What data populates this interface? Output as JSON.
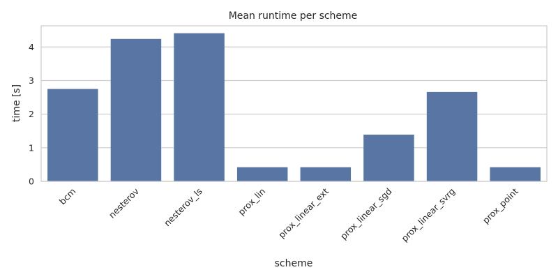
{
  "chart_data": {
    "type": "bar",
    "title": "Mean runtime per scheme",
    "xlabel": "scheme",
    "ylabel": "time [s]",
    "categories": [
      "bcm",
      "nesterov",
      "nesterov_ls",
      "prox_lin",
      "prox_linear_ext",
      "prox_linear_sgd",
      "prox_linear_svrg",
      "prox_point"
    ],
    "values": [
      2.75,
      4.24,
      4.41,
      0.42,
      0.42,
      1.39,
      2.66,
      0.42
    ],
    "ylim": [
      0,
      4.63
    ],
    "yticks": [
      "0",
      "1",
      "2",
      "3",
      "4"
    ],
    "grid": "horizontal",
    "bar_color": "#5975a4",
    "grid_color": "#cccccc",
    "spine_color": "#cccccc"
  }
}
